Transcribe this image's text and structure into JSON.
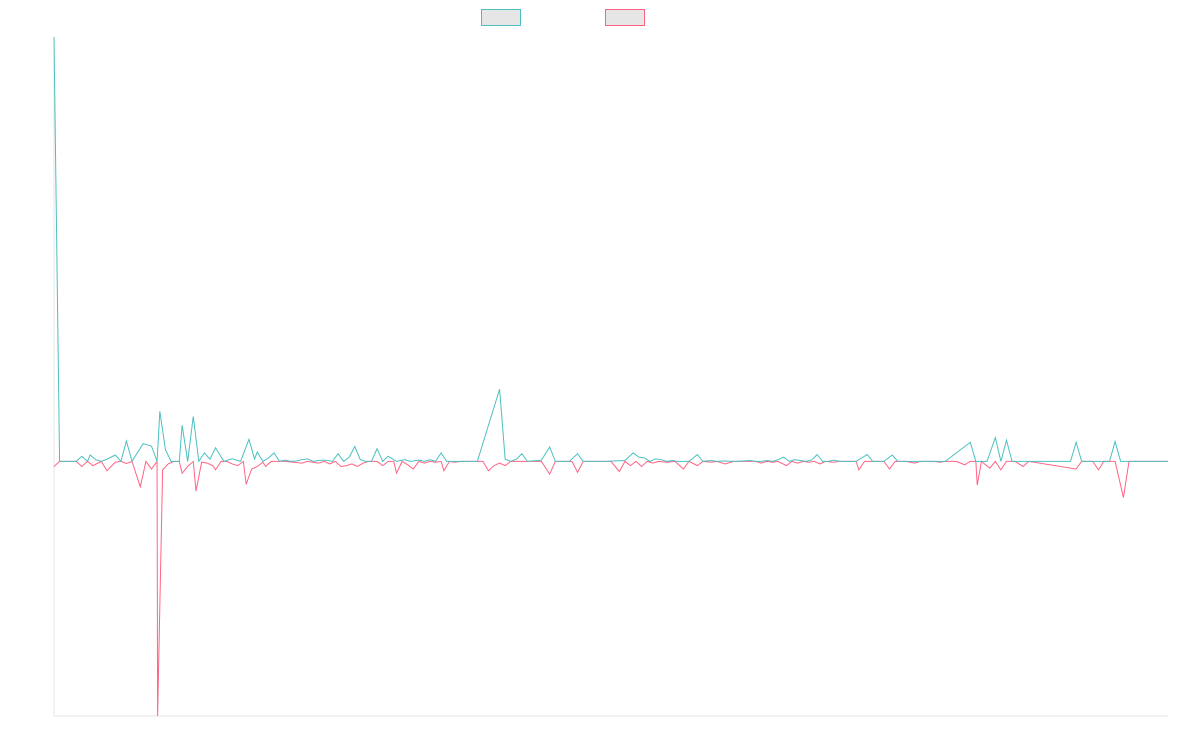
{
  "chart_data": {
    "type": "line",
    "title": "",
    "xlabel": "",
    "ylabel": "",
    "legend": {
      "position": "top-center",
      "entries": [
        {
          "label": "",
          "color": "#4bc0c0"
        },
        {
          "label": "",
          "color": "#ff6384"
        }
      ]
    },
    "ylim": [
      -0.6,
      1.0
    ],
    "grid": false,
    "series": [
      {
        "color": "#4bc0c0",
        "fill": false,
        "points": [
          [
            0,
            1.0
          ],
          [
            2,
            0
          ],
          [
            8,
            0
          ],
          [
            10,
            0.012
          ],
          [
            12,
            0
          ],
          [
            13,
            0.015
          ],
          [
            15,
            0.004
          ],
          [
            17,
            0
          ],
          [
            19,
            0.005
          ],
          [
            22,
            0.015
          ],
          [
            24,
            0
          ],
          [
            26,
            0.048
          ],
          [
            28,
            0
          ],
          [
            32,
            0.042
          ],
          [
            35,
            0.036
          ],
          [
            37,
            0
          ],
          [
            38,
            0.118
          ],
          [
            40,
            0.028
          ],
          [
            42,
            0
          ],
          [
            45,
            0
          ],
          [
            46,
            0.085
          ],
          [
            48,
            0
          ],
          [
            50,
            0.106
          ],
          [
            52,
            0
          ],
          [
            54,
            0.02
          ],
          [
            56,
            0.005
          ],
          [
            58,
            0.032
          ],
          [
            61,
            0
          ],
          [
            64,
            0.006
          ],
          [
            67,
            0
          ],
          [
            70,
            0.052
          ],
          [
            72,
            0.006
          ],
          [
            73,
            0.022
          ],
          [
            75,
            0
          ],
          [
            77,
            0.008
          ],
          [
            79,
            0.02
          ],
          [
            81,
            0
          ],
          [
            83,
            0.003
          ],
          [
            85,
            0
          ],
          [
            87,
            0.001
          ],
          [
            89,
            0.004
          ],
          [
            91,
            0.006
          ],
          [
            93,
            0
          ],
          [
            95,
            0.002
          ],
          [
            97,
            0.003
          ],
          [
            100,
            0
          ],
          [
            102,
            0.018
          ],
          [
            104,
            0
          ],
          [
            106,
            0.01
          ],
          [
            108,
            0.035
          ],
          [
            110,
            0.004
          ],
          [
            112,
            0
          ],
          [
            114,
            0
          ],
          [
            116,
            0.03
          ],
          [
            118,
            0
          ],
          [
            120,
            0.012
          ],
          [
            123,
            0
          ],
          [
            126,
            0.004
          ],
          [
            128,
            0
          ],
          [
            131,
            0.003
          ],
          [
            133,
            0
          ],
          [
            135,
            0.004
          ],
          [
            137,
            0
          ],
          [
            139,
            0.02
          ],
          [
            141,
            0
          ],
          [
            148,
            0
          ],
          [
            152,
            0
          ],
          [
            160,
            0.17
          ],
          [
            162,
            0.005
          ],
          [
            164,
            0
          ],
          [
            166,
            0.005
          ],
          [
            168,
            0.018
          ],
          [
            170,
            0
          ],
          [
            175,
            0.003
          ],
          [
            178,
            0.034
          ],
          [
            180,
            0
          ],
          [
            185,
            0
          ],
          [
            188,
            0.018
          ],
          [
            190,
            0
          ],
          [
            198,
            0
          ],
          [
            205,
            0.002
          ],
          [
            208,
            0.02
          ],
          [
            210,
            0.01
          ],
          [
            212,
            0.008
          ],
          [
            214,
            0
          ],
          [
            216,
            0.006
          ],
          [
            218,
            0.004
          ],
          [
            220,
            0
          ],
          [
            222,
            0.002
          ],
          [
            224,
            0
          ],
          [
            228,
            0
          ],
          [
            231,
            0.016
          ],
          [
            233,
            0
          ],
          [
            236,
            0.002
          ],
          [
            238,
            0
          ],
          [
            240,
            0.001
          ],
          [
            245,
            0
          ],
          [
            250,
            0.002
          ],
          [
            252,
            0
          ],
          [
            254,
            0
          ],
          [
            256,
            0.002
          ],
          [
            258,
            0
          ],
          [
            260,
            0.004
          ],
          [
            262,
            0.01
          ],
          [
            264,
            0
          ],
          [
            266,
            0.004
          ],
          [
            268,
            0.002
          ],
          [
            270,
            0
          ],
          [
            272,
            0.003
          ],
          [
            274,
            0.016
          ],
          [
            276,
            0
          ],
          [
            278,
            0
          ],
          [
            280,
            0.003
          ],
          [
            282,
            0
          ],
          [
            288,
            0
          ],
          [
            292,
            0.016
          ],
          [
            294,
            0
          ],
          [
            298,
            0
          ],
          [
            301,
            0.015
          ],
          [
            303,
            0
          ],
          [
            310,
            0
          ],
          [
            320,
            0
          ],
          [
            329,
            0.045
          ],
          [
            331,
            0
          ],
          [
            335,
            0
          ],
          [
            338,
            0.056
          ],
          [
            340,
            0
          ],
          [
            342,
            0.05
          ],
          [
            344,
            0
          ],
          [
            365,
            0
          ],
          [
            367,
            0.045
          ],
          [
            369,
            0
          ],
          [
            379,
            0
          ],
          [
            381,
            0.047
          ],
          [
            383,
            0
          ],
          [
            389,
            0
          ],
          [
            400,
            0
          ]
        ]
      },
      {
        "color": "#ff6384",
        "fill": false,
        "points": [
          [
            0,
            -0.012
          ],
          [
            2,
            0
          ],
          [
            8,
            0
          ],
          [
            10,
            -0.012
          ],
          [
            12,
            0
          ],
          [
            14,
            -0.01
          ],
          [
            17,
            0
          ],
          [
            19,
            -0.022
          ],
          [
            22,
            -0.002
          ],
          [
            24,
            0
          ],
          [
            26,
            -0.005
          ],
          [
            28,
            0
          ],
          [
            31,
            -0.06
          ],
          [
            33,
            0
          ],
          [
            35,
            -0.018
          ],
          [
            37,
            0
          ],
          [
            37.2,
            -0.6
          ],
          [
            39,
            -0.02
          ],
          [
            41,
            -0.006
          ],
          [
            43,
            0
          ],
          [
            45,
            0
          ],
          [
            46,
            -0.028
          ],
          [
            48,
            -0.012
          ],
          [
            50,
            0
          ],
          [
            51,
            -0.07
          ],
          [
            53,
            -0.002
          ],
          [
            55,
            -0.004
          ],
          [
            57,
            -0.01
          ],
          [
            58,
            -0.02
          ],
          [
            60,
            0
          ],
          [
            62,
            0
          ],
          [
            64,
            -0.006
          ],
          [
            66,
            -0.01
          ],
          [
            68,
            0
          ],
          [
            69,
            -0.054
          ],
          [
            71,
            -0.018
          ],
          [
            73,
            -0.012
          ],
          [
            75,
            -0.002
          ],
          [
            76,
            -0.012
          ],
          [
            78,
            0
          ],
          [
            83,
            0
          ],
          [
            86,
            -0.002
          ],
          [
            89,
            -0.004
          ],
          [
            91,
            0
          ],
          [
            93,
            -0.002
          ],
          [
            95,
            -0.004
          ],
          [
            97,
            0
          ],
          [
            99,
            -0.006
          ],
          [
            101,
            0
          ],
          [
            103,
            -0.012
          ],
          [
            105,
            -0.01
          ],
          [
            107,
            -0.006
          ],
          [
            109,
            -0.012
          ],
          [
            111,
            -0.004
          ],
          [
            113,
            0
          ],
          [
            116,
            0
          ],
          [
            118,
            -0.01
          ],
          [
            120,
            0
          ],
          [
            122,
            0
          ],
          [
            123,
            -0.028
          ],
          [
            125,
            0
          ],
          [
            127,
            -0.008
          ],
          [
            129,
            -0.018
          ],
          [
            131,
            0
          ],
          [
            133,
            -0.004
          ],
          [
            135,
            0
          ],
          [
            137,
            -0.002
          ],
          [
            139,
            0
          ],
          [
            140,
            -0.022
          ],
          [
            142,
            0
          ],
          [
            144,
            -0.002
          ],
          [
            146,
            0
          ],
          [
            150,
            0
          ],
          [
            154,
            0
          ],
          [
            156,
            -0.022
          ],
          [
            158,
            -0.01
          ],
          [
            160,
            -0.004
          ],
          [
            162,
            -0.01
          ],
          [
            164,
            0
          ],
          [
            168,
            0
          ],
          [
            175,
            0
          ],
          [
            178,
            -0.03
          ],
          [
            180,
            0
          ],
          [
            186,
            0
          ],
          [
            188,
            -0.026
          ],
          [
            190,
            0
          ],
          [
            200,
            0
          ],
          [
            203,
            -0.024
          ],
          [
            205,
            0
          ],
          [
            207,
            -0.01
          ],
          [
            209,
            0
          ],
          [
            211,
            -0.012
          ],
          [
            213,
            0
          ],
          [
            215,
            -0.004
          ],
          [
            217,
            0
          ],
          [
            220,
            -0.002
          ],
          [
            223,
            0
          ],
          [
            226,
            -0.018
          ],
          [
            228,
            0
          ],
          [
            231,
            -0.01
          ],
          [
            233,
            0
          ],
          [
            236,
            -0.002
          ],
          [
            238,
            0
          ],
          [
            241,
            -0.006
          ],
          [
            244,
            0
          ],
          [
            248,
            0
          ],
          [
            252,
            0
          ],
          [
            254,
            -0.004
          ],
          [
            256,
            0
          ],
          [
            258,
            -0.002
          ],
          [
            260,
            0
          ],
          [
            263,
            -0.01
          ],
          [
            265,
            0
          ],
          [
            267,
            -0.004
          ],
          [
            269,
            0
          ],
          [
            271,
            -0.002
          ],
          [
            273,
            0
          ],
          [
            275,
            -0.006
          ],
          [
            277,
            0
          ],
          [
            280,
            -0.002
          ],
          [
            282,
            0
          ],
          [
            288,
            0
          ],
          [
            289,
            -0.02
          ],
          [
            291,
            0
          ],
          [
            298,
            0
          ],
          [
            300,
            -0.018
          ],
          [
            302,
            0
          ],
          [
            306,
            0
          ],
          [
            309,
            -0.004
          ],
          [
            311,
            0
          ],
          [
            316,
            0
          ],
          [
            318,
            -0.002
          ],
          [
            320,
            0
          ],
          [
            324,
            0
          ],
          [
            327,
            -0.008
          ],
          [
            329,
            0
          ],
          [
            331,
            0
          ],
          [
            331.5,
            -0.056
          ],
          [
            333,
            0
          ],
          [
            336,
            -0.016
          ],
          [
            338,
            0
          ],
          [
            340,
            -0.02
          ],
          [
            342,
            0
          ],
          [
            345,
            0
          ],
          [
            348,
            -0.012
          ],
          [
            350,
            0
          ],
          [
            367,
            -0.018
          ],
          [
            369,
            0
          ],
          [
            373,
            0
          ],
          [
            375,
            -0.02
          ],
          [
            377,
            0
          ],
          [
            381,
            0
          ],
          [
            384,
            -0.085
          ],
          [
            386,
            0
          ],
          [
            389,
            0
          ],
          [
            400,
            0
          ]
        ]
      }
    ]
  }
}
